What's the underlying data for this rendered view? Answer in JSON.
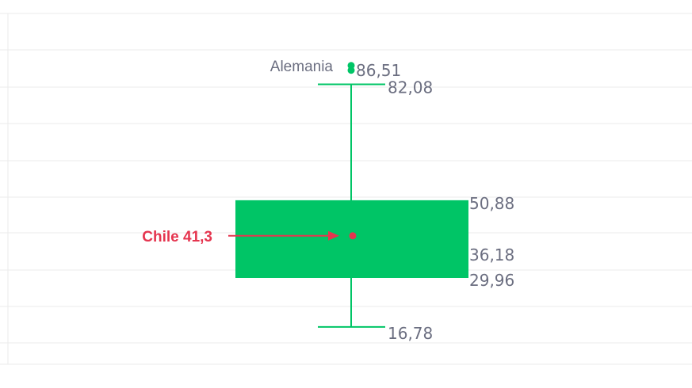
{
  "colors": {
    "box": "#00c566",
    "highlight": "#e5354f",
    "grid": "#ebebeb",
    "text": "#6b6e80"
  },
  "chart_data": {
    "type": "box",
    "grid": true,
    "ylim": [
      8,
      92
    ],
    "whisker_high": 82.08,
    "q3": 50.88,
    "median": 36.18,
    "q1": 29.96,
    "whisker_low": 16.78,
    "labels": {
      "whisker_high": "82,08",
      "q3": "50,88",
      "median": "36,18",
      "q1": "29,96",
      "whisker_low": "16,78"
    },
    "outliers": [
      {
        "name": "Alemania",
        "value": 86.51,
        "value_label": "86,51"
      }
    ],
    "highlight": {
      "label": "Chile 41,3",
      "value": 41.3
    }
  }
}
